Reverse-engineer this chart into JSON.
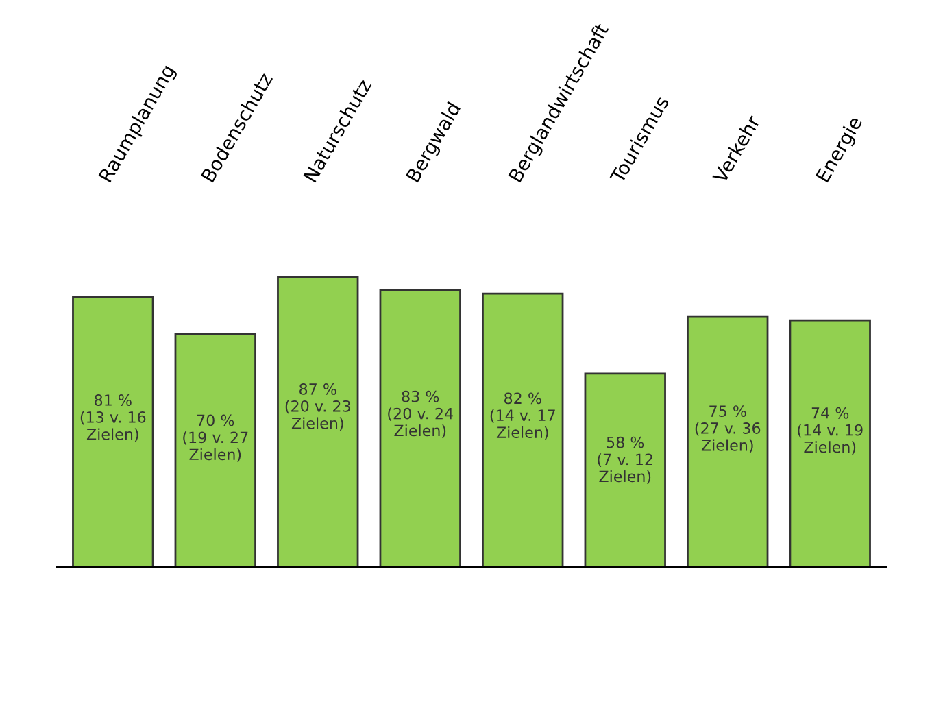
{
  "chart_data": {
    "type": "bar",
    "categories": [
      "Raumplanung",
      "Bodenschutz",
      "Naturschutz",
      "Bergwald",
      "Berglandwirtschaft",
      "Tourismus",
      "Verkehr",
      "Energie"
    ],
    "values": [
      81,
      70,
      87,
      83,
      82,
      58,
      75,
      74
    ],
    "value_labels": [
      "81 %\n(13 v. 16\nZielen)",
      "70 %\n(19 v. 27\nZielen)",
      "87 %\n(20 v. 23\nZielen)",
      "83 %\n(20 v. 24\nZielen)",
      "82 %\n(14 v. 17\nZielen)",
      "58 %\n(7 v. 12\nZielen)",
      "75 %\n(27 v. 36\nZielen)",
      "74 %\n(14 v. 19\nZielen)"
    ],
    "color": "#92d050",
    "grid": false,
    "legend": false
  }
}
